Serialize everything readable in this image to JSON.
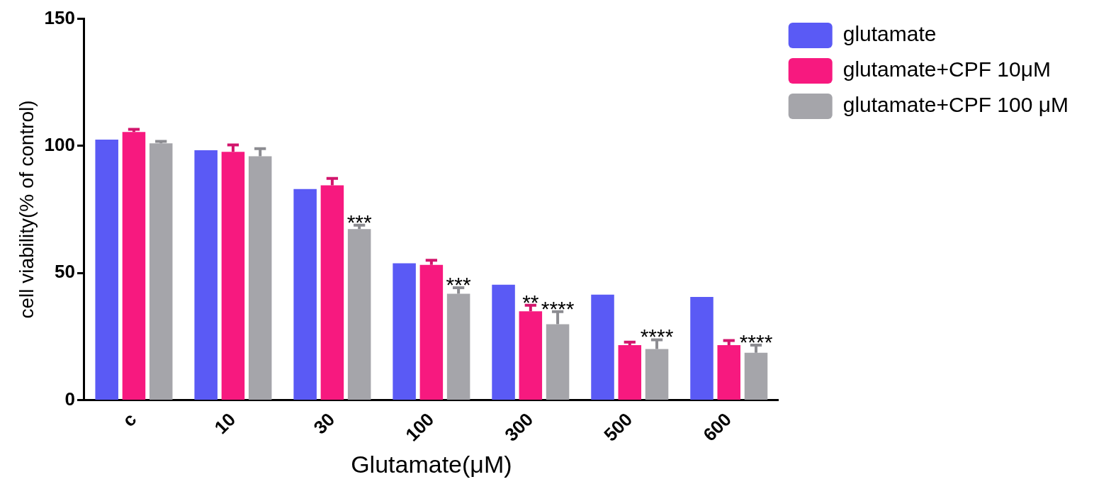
{
  "chart_data": {
    "type": "bar",
    "xlabel": "Glutamate(μM)",
    "ylabel": "cell viability(% of control)",
    "categories": [
      "c",
      "10",
      "30",
      "100",
      "300",
      "500",
      "600"
    ],
    "series": [
      {
        "name": "glutamate",
        "color": "#5a5af5",
        "values": [
          102.5,
          98.3,
          83,
          53.8,
          45.4,
          41.5,
          40.6
        ]
      },
      {
        "name": "glutamate+CPF 10μM",
        "color": "#f7197f",
        "values": [
          105.5,
          97.7,
          84.5,
          53.2,
          34.9,
          21.6,
          21.6
        ],
        "errors": [
          [
            105.5,
            106.5
          ],
          [
            97.7,
            100.4
          ],
          [
            84.5,
            87.2
          ],
          [
            53.2,
            55
          ],
          [
            34.9,
            37.3
          ],
          [
            21.6,
            22.8
          ],
          [
            21.6,
            23.4
          ]
        ]
      },
      {
        "name": "glutamate+CPF 100 μM",
        "color": "#a5a5aa",
        "values": [
          101,
          95.9,
          67.3,
          41.8,
          29.8,
          20.1,
          18.6
        ],
        "errors": [
          [
            101,
            101.8
          ],
          [
            95.9,
            98.9
          ],
          [
            67.3,
            68.8
          ],
          [
            41.8,
            44.2
          ],
          [
            29.8,
            34.8
          ],
          [
            20.1,
            23.7
          ],
          [
            18.6,
            21.6
          ]
        ]
      }
    ],
    "ylim": [
      0,
      150
    ],
    "yticks": [
      0,
      50,
      100,
      150
    ],
    "grid": false,
    "legend": "top right",
    "annotations": [
      {
        "text": "***",
        "x": "30",
        "y": 68.8
      },
      {
        "text": "***",
        "x": "100",
        "y": 44.2
      },
      {
        "text": "**",
        "x": "300",
        "y": 34.9
      },
      {
        "text": "****",
        "x": "300",
        "y": 34.8
      },
      {
        "text": "****",
        "x": "500",
        "y": 23.7
      },
      {
        "text": "****",
        "x": "600",
        "y": 21.6
      }
    ]
  }
}
